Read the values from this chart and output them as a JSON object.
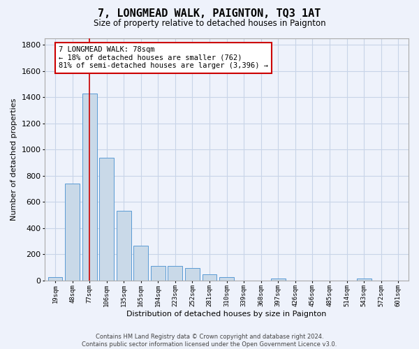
{
  "title": "7, LONGMEAD WALK, PAIGNTON, TQ3 1AT",
  "subtitle": "Size of property relative to detached houses in Paignton",
  "xlabel": "Distribution of detached houses by size in Paignton",
  "ylabel": "Number of detached properties",
  "bar_labels": [
    "19sqm",
    "48sqm",
    "77sqm",
    "106sqm",
    "135sqm",
    "165sqm",
    "194sqm",
    "223sqm",
    "252sqm",
    "281sqm",
    "310sqm",
    "339sqm",
    "368sqm",
    "397sqm",
    "426sqm",
    "456sqm",
    "485sqm",
    "514sqm",
    "543sqm",
    "572sqm",
    "601sqm"
  ],
  "bar_values": [
    25,
    740,
    1430,
    940,
    530,
    265,
    110,
    110,
    95,
    45,
    25,
    0,
    0,
    15,
    0,
    0,
    0,
    0,
    15,
    0,
    0
  ],
  "bar_color": "#c9d9e8",
  "bar_edge_color": "#5b9bd5",
  "grid_color": "#c8d4e8",
  "background_color": "#eef2fb",
  "annotation_text": "7 LONGMEAD WALK: 78sqm\n← 18% of detached houses are smaller (762)\n81% of semi-detached houses are larger (3,396) →",
  "annotation_box_color": "#ffffff",
  "annotation_box_edge_color": "#cc0000",
  "vline_color": "#cc0000",
  "footer": "Contains HM Land Registry data © Crown copyright and database right 2024.\nContains public sector information licensed under the Open Government Licence v3.0.",
  "ylim": [
    0,
    1850
  ],
  "yticks": [
    0,
    200,
    400,
    600,
    800,
    1000,
    1200,
    1400,
    1600,
    1800
  ],
  "figsize": [
    6.0,
    5.0
  ],
  "dpi": 100
}
